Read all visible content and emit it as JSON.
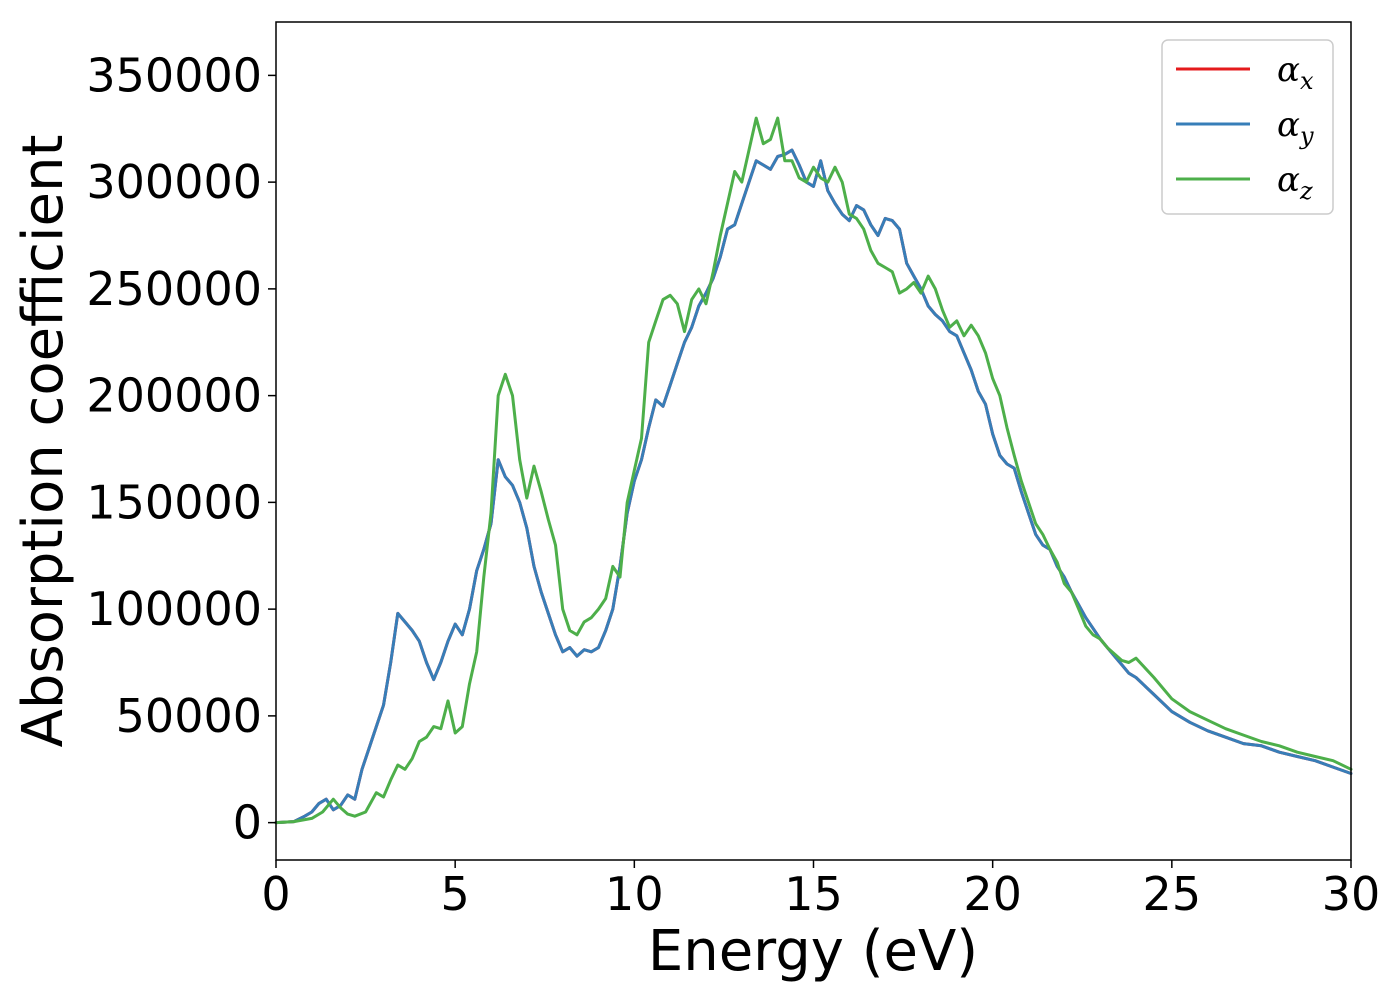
{
  "chart_data": {
    "type": "line",
    "xlabel": "Energy (eV)",
    "ylabel": "Absorption coefficient",
    "xlim": [
      0,
      30
    ],
    "ylim": [
      -17500,
      375000
    ],
    "xticks": [
      0,
      5,
      10,
      15,
      20,
      25,
      30
    ],
    "xtick_labels": [
      "0",
      "5",
      "10",
      "15",
      "20",
      "25",
      "30"
    ],
    "yticks": [
      0,
      50000,
      100000,
      150000,
      200000,
      250000,
      300000,
      350000
    ],
    "ytick_labels": [
      "0",
      "50000",
      "100000",
      "150000",
      "200000",
      "250000",
      "300000",
      "350000"
    ],
    "grid": false,
    "legend_position": "top-right",
    "series": [
      {
        "name": "αx",
        "symbol": "α",
        "subscript": "x",
        "color": "#e41a1c",
        "x": [
          0,
          0.5,
          0.8,
          1.0,
          1.2,
          1.4,
          1.6,
          1.8,
          2.0,
          2.2,
          2.4,
          2.6,
          2.8,
          3.0,
          3.2,
          3.4,
          3.6,
          3.8,
          4.0,
          4.2,
          4.4,
          4.6,
          4.8,
          5.0,
          5.2,
          5.4,
          5.6,
          5.8,
          6.0,
          6.2,
          6.4,
          6.6,
          6.8,
          7.0,
          7.2,
          7.4,
          7.6,
          7.8,
          8.0,
          8.2,
          8.4,
          8.6,
          8.8,
          9.0,
          9.2,
          9.4,
          9.6,
          9.8,
          10.0,
          10.2,
          10.4,
          10.6,
          10.8,
          11.0,
          11.2,
          11.4,
          11.6,
          11.8,
          12.0,
          12.2,
          12.4,
          12.6,
          12.8,
          13.0,
          13.2,
          13.4,
          13.6,
          13.8,
          14.0,
          14.2,
          14.4,
          14.6,
          14.8,
          15.0,
          15.2,
          15.4,
          15.6,
          15.8,
          16.0,
          16.2,
          16.4,
          16.6,
          16.8,
          17.0,
          17.2,
          17.4,
          17.6,
          17.8,
          18.0,
          18.2,
          18.4,
          18.6,
          18.8,
          19.0,
          19.2,
          19.4,
          19.6,
          19.8,
          20.0,
          20.2,
          20.4,
          20.6,
          20.8,
          21.0,
          21.2,
          21.4,
          21.6,
          21.8,
          22.0,
          22.2,
          22.4,
          22.6,
          22.8,
          23.0,
          23.2,
          23.4,
          23.6,
          23.8,
          24.0,
          24.5,
          25.0,
          25.5,
          26.0,
          26.5,
          27.0,
          27.5,
          28.0,
          28.5,
          29.0,
          29.5,
          30.0
        ],
        "y": [
          0,
          500,
          3000,
          5000,
          9000,
          11000,
          6000,
          8000,
          13000,
          11000,
          25000,
          35000,
          45000,
          55000,
          75000,
          98000,
          94000,
          90000,
          85000,
          75000,
          67000,
          75000,
          85000,
          93000,
          88000,
          100000,
          118000,
          128000,
          140000,
          170000,
          162000,
          158000,
          150000,
          138000,
          120000,
          108000,
          98000,
          88000,
          80000,
          82000,
          78000,
          81000,
          80000,
          82000,
          90000,
          100000,
          120000,
          145000,
          160000,
          170000,
          185000,
          198000,
          195000,
          205000,
          215000,
          225000,
          232000,
          242000,
          248000,
          255000,
          265000,
          278000,
          280000,
          290000,
          300000,
          310000,
          308000,
          306000,
          312000,
          313000,
          315000,
          308000,
          300000,
          298000,
          310000,
          296000,
          290000,
          285000,
          282000,
          289000,
          287000,
          280000,
          275000,
          283000,
          282000,
          278000,
          262000,
          256000,
          250000,
          242000,
          238000,
          235000,
          230000,
          228000,
          220000,
          212000,
          202000,
          196000,
          182000,
          172000,
          168000,
          166000,
          155000,
          145000,
          135000,
          130000,
          128000,
          120000,
          115000,
          108000,
          102000,
          96000,
          91000,
          86000,
          82000,
          78000,
          74000,
          70000,
          68000,
          60000,
          52000,
          47000,
          43000,
          40000,
          37000,
          36000,
          33000,
          31000,
          29000,
          26000,
          23000
        ]
      },
      {
        "name": "αy",
        "symbol": "α",
        "subscript": "y",
        "color": "#377eb8",
        "x": [
          0,
          0.5,
          0.8,
          1.0,
          1.2,
          1.4,
          1.6,
          1.8,
          2.0,
          2.2,
          2.4,
          2.6,
          2.8,
          3.0,
          3.2,
          3.4,
          3.6,
          3.8,
          4.0,
          4.2,
          4.4,
          4.6,
          4.8,
          5.0,
          5.2,
          5.4,
          5.6,
          5.8,
          6.0,
          6.2,
          6.4,
          6.6,
          6.8,
          7.0,
          7.2,
          7.4,
          7.6,
          7.8,
          8.0,
          8.2,
          8.4,
          8.6,
          8.8,
          9.0,
          9.2,
          9.4,
          9.6,
          9.8,
          10.0,
          10.2,
          10.4,
          10.6,
          10.8,
          11.0,
          11.2,
          11.4,
          11.6,
          11.8,
          12.0,
          12.2,
          12.4,
          12.6,
          12.8,
          13.0,
          13.2,
          13.4,
          13.6,
          13.8,
          14.0,
          14.2,
          14.4,
          14.6,
          14.8,
          15.0,
          15.2,
          15.4,
          15.6,
          15.8,
          16.0,
          16.2,
          16.4,
          16.6,
          16.8,
          17.0,
          17.2,
          17.4,
          17.6,
          17.8,
          18.0,
          18.2,
          18.4,
          18.6,
          18.8,
          19.0,
          19.2,
          19.4,
          19.6,
          19.8,
          20.0,
          20.2,
          20.4,
          20.6,
          20.8,
          21.0,
          21.2,
          21.4,
          21.6,
          21.8,
          22.0,
          22.2,
          22.4,
          22.6,
          22.8,
          23.0,
          23.2,
          23.4,
          23.6,
          23.8,
          24.0,
          24.5,
          25.0,
          25.5,
          26.0,
          26.5,
          27.0,
          27.5,
          28.0,
          28.5,
          29.0,
          29.5,
          30.0
        ],
        "y": [
          0,
          500,
          3000,
          5000,
          9000,
          11000,
          6000,
          8000,
          13000,
          11000,
          25000,
          35000,
          45000,
          55000,
          75000,
          98000,
          94000,
          90000,
          85000,
          75000,
          67000,
          75000,
          85000,
          93000,
          88000,
          100000,
          118000,
          128000,
          140000,
          170000,
          162000,
          158000,
          150000,
          138000,
          120000,
          108000,
          98000,
          88000,
          80000,
          82000,
          78000,
          81000,
          80000,
          82000,
          90000,
          100000,
          120000,
          145000,
          160000,
          170000,
          185000,
          198000,
          195000,
          205000,
          215000,
          225000,
          232000,
          242000,
          248000,
          255000,
          265000,
          278000,
          280000,
          290000,
          300000,
          310000,
          308000,
          306000,
          312000,
          313000,
          315000,
          308000,
          300000,
          298000,
          310000,
          296000,
          290000,
          285000,
          282000,
          289000,
          287000,
          280000,
          275000,
          283000,
          282000,
          278000,
          262000,
          256000,
          250000,
          242000,
          238000,
          235000,
          230000,
          228000,
          220000,
          212000,
          202000,
          196000,
          182000,
          172000,
          168000,
          166000,
          155000,
          145000,
          135000,
          130000,
          128000,
          120000,
          115000,
          108000,
          102000,
          96000,
          91000,
          86000,
          82000,
          78000,
          74000,
          70000,
          68000,
          60000,
          52000,
          47000,
          43000,
          40000,
          37000,
          36000,
          33000,
          31000,
          29000,
          26000,
          23000
        ]
      },
      {
        "name": "αz",
        "symbol": "α",
        "subscript": "z",
        "color": "#4daf4a",
        "x": [
          0,
          0.5,
          1.0,
          1.3,
          1.6,
          1.8,
          2.0,
          2.2,
          2.5,
          2.8,
          3.0,
          3.2,
          3.4,
          3.6,
          3.8,
          4.0,
          4.2,
          4.4,
          4.6,
          4.8,
          5.0,
          5.2,
          5.4,
          5.6,
          5.8,
          6.0,
          6.2,
          6.4,
          6.6,
          6.8,
          7.0,
          7.2,
          7.4,
          7.6,
          7.8,
          8.0,
          8.2,
          8.4,
          8.6,
          8.8,
          9.0,
          9.2,
          9.4,
          9.6,
          9.8,
          10.0,
          10.2,
          10.4,
          10.6,
          10.8,
          11.0,
          11.2,
          11.4,
          11.6,
          11.8,
          12.0,
          12.2,
          12.4,
          12.6,
          12.8,
          13.0,
          13.2,
          13.4,
          13.6,
          13.8,
          14.0,
          14.2,
          14.4,
          14.6,
          14.8,
          15.0,
          15.2,
          15.4,
          15.6,
          15.8,
          16.0,
          16.2,
          16.4,
          16.6,
          16.8,
          17.0,
          17.2,
          17.4,
          17.6,
          17.8,
          18.0,
          18.2,
          18.4,
          18.6,
          18.8,
          19.0,
          19.2,
          19.4,
          19.6,
          19.8,
          20.0,
          20.2,
          20.4,
          20.6,
          20.8,
          21.0,
          21.2,
          21.4,
          21.6,
          21.8,
          22.0,
          22.2,
          22.4,
          22.6,
          22.8,
          23.0,
          23.2,
          23.4,
          23.6,
          23.8,
          24.0,
          24.5,
          25.0,
          25.5,
          26.0,
          26.5,
          27.0,
          27.5,
          28.0,
          28.5,
          29.0,
          29.5,
          30.0
        ],
        "y": [
          0,
          500,
          2000,
          5000,
          11000,
          7000,
          4000,
          3000,
          5000,
          14000,
          12000,
          20000,
          27000,
          25000,
          30000,
          38000,
          40000,
          45000,
          44000,
          57000,
          42000,
          45000,
          65000,
          80000,
          115000,
          145000,
          200000,
          210000,
          200000,
          170000,
          152000,
          167000,
          155000,
          142000,
          130000,
          100000,
          90000,
          88000,
          94000,
          96000,
          100000,
          105000,
          120000,
          115000,
          150000,
          165000,
          180000,
          225000,
          235000,
          245000,
          247000,
          243000,
          230000,
          245000,
          250000,
          243000,
          258000,
          275000,
          290000,
          305000,
          300000,
          315000,
          330000,
          318000,
          320000,
          330000,
          310000,
          310000,
          302000,
          300000,
          307000,
          302000,
          300000,
          307000,
          300000,
          285000,
          283000,
          278000,
          268000,
          262000,
          260000,
          258000,
          248000,
          250000,
          253000,
          248000,
          256000,
          250000,
          240000,
          232000,
          235000,
          228000,
          233000,
          228000,
          220000,
          208000,
          200000,
          185000,
          172000,
          160000,
          150000,
          140000,
          135000,
          128000,
          122000,
          112000,
          108000,
          100000,
          92000,
          88000,
          86000,
          82000,
          79000,
          76000,
          75000,
          77000,
          68000,
          58000,
          52000,
          48000,
          44000,
          41000,
          38000,
          36000,
          33000,
          31000,
          29000,
          25000
        ]
      }
    ]
  }
}
